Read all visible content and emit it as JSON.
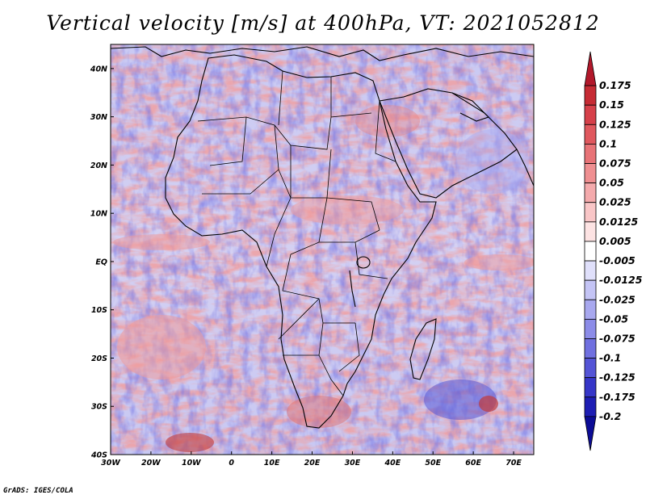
{
  "title": "Vertical velocity [m/s] at 400hPa, VT: 2021052812",
  "footer": "GrADS: IGES/COLA",
  "map": {
    "variable": "Vertical velocity",
    "units": "m/s",
    "level": "400hPa",
    "valid_time": "2021052812",
    "lon_range": [
      -30,
      75
    ],
    "lat_range": [
      -40,
      45
    ],
    "lat_ticks": [
      {
        "value": 40,
        "label": "40N"
      },
      {
        "value": 30,
        "label": "30N"
      },
      {
        "value": 20,
        "label": "20N"
      },
      {
        "value": 10,
        "label": "10N"
      },
      {
        "value": 0,
        "label": "EQ"
      },
      {
        "value": -10,
        "label": "10S"
      },
      {
        "value": -20,
        "label": "20S"
      },
      {
        "value": -30,
        "label": "30S"
      },
      {
        "value": -40,
        "label": "40S"
      }
    ],
    "lon_ticks": [
      {
        "value": -30,
        "label": "30W"
      },
      {
        "value": -20,
        "label": "20W"
      },
      {
        "value": -10,
        "label": "10W"
      },
      {
        "value": 0,
        "label": "0"
      },
      {
        "value": 10,
        "label": "10E"
      },
      {
        "value": 20,
        "label": "20E"
      },
      {
        "value": 30,
        "label": "30E"
      },
      {
        "value": 40,
        "label": "40E"
      },
      {
        "value": 50,
        "label": "50E"
      },
      {
        "value": 60,
        "label": "60E"
      },
      {
        "value": 70,
        "label": "70E"
      }
    ]
  },
  "colorbar": {
    "labels": [
      "0.175",
      "0.15",
      "0.125",
      "0.1",
      "0.075",
      "0.05",
      "0.025",
      "0.0125",
      "0.005",
      "-0.005",
      "-0.0125",
      "-0.025",
      "-0.05",
      "-0.075",
      "-0.1",
      "-0.125",
      "-0.175",
      "-0.2"
    ],
    "colors": [
      "#b2182b",
      "#c62b34",
      "#d6404a",
      "#e0585e",
      "#e87377",
      "#ef8f91",
      "#f4aaac",
      "#f9c6c7",
      "#fde3e3",
      "#ffffff",
      "#e0e0fb",
      "#c4c4f5",
      "#a8a8ef",
      "#8c8ce8",
      "#7070e0",
      "#5454d6",
      "#3636c8",
      "#1e1eb4",
      "#0c0c96"
    ]
  },
  "colors": {
    "positive": "#e06060",
    "negative": "#6464e0",
    "neutral": "#ffffff",
    "coast": "#000000"
  }
}
